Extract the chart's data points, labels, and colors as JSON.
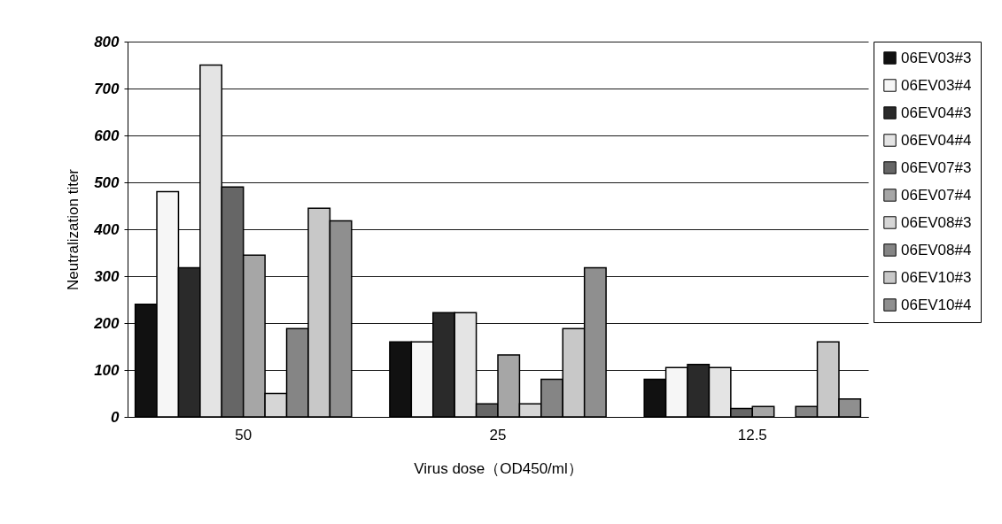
{
  "chart_data": {
    "type": "bar",
    "xlabel": "Virus dose（OD450/ml）",
    "ylabel": "Neutralization titer",
    "categories": [
      "50",
      "25",
      "12.5"
    ],
    "series": [
      {
        "name": "06EV03#3",
        "color": "#111111",
        "values": [
          240,
          160,
          80
        ]
      },
      {
        "name": "06EV03#4",
        "color": "#f6f6f6",
        "values": [
          480,
          160,
          105
        ]
      },
      {
        "name": "06EV04#3",
        "color": "#2a2a2a",
        "values": [
          318,
          222,
          112
        ]
      },
      {
        "name": "06EV04#4",
        "color": "#e4e4e4",
        "values": [
          750,
          222,
          105
        ]
      },
      {
        "name": "06EV07#3",
        "color": "#666666",
        "values": [
          490,
          28,
          18
        ]
      },
      {
        "name": "06EV07#4",
        "color": "#a6a6a6",
        "values": [
          345,
          132,
          22
        ]
      },
      {
        "name": "06EV08#3",
        "color": "#d6d6d6",
        "values": [
          50,
          28,
          null
        ]
      },
      {
        "name": "06EV08#4",
        "color": "#858585",
        "values": [
          188,
          80,
          22
        ]
      },
      {
        "name": "06EV10#3",
        "color": "#c8c8c8",
        "values": [
          445,
          188,
          160
        ]
      },
      {
        "name": "06EV10#4",
        "color": "#8f8f8f",
        "values": [
          418,
          318,
          38
        ]
      }
    ],
    "ylim": [
      0,
      800
    ],
    "yticks": [
      0,
      100,
      200,
      300,
      400,
      500,
      600,
      700,
      800
    ],
    "grid": "y",
    "legend": "right"
  }
}
